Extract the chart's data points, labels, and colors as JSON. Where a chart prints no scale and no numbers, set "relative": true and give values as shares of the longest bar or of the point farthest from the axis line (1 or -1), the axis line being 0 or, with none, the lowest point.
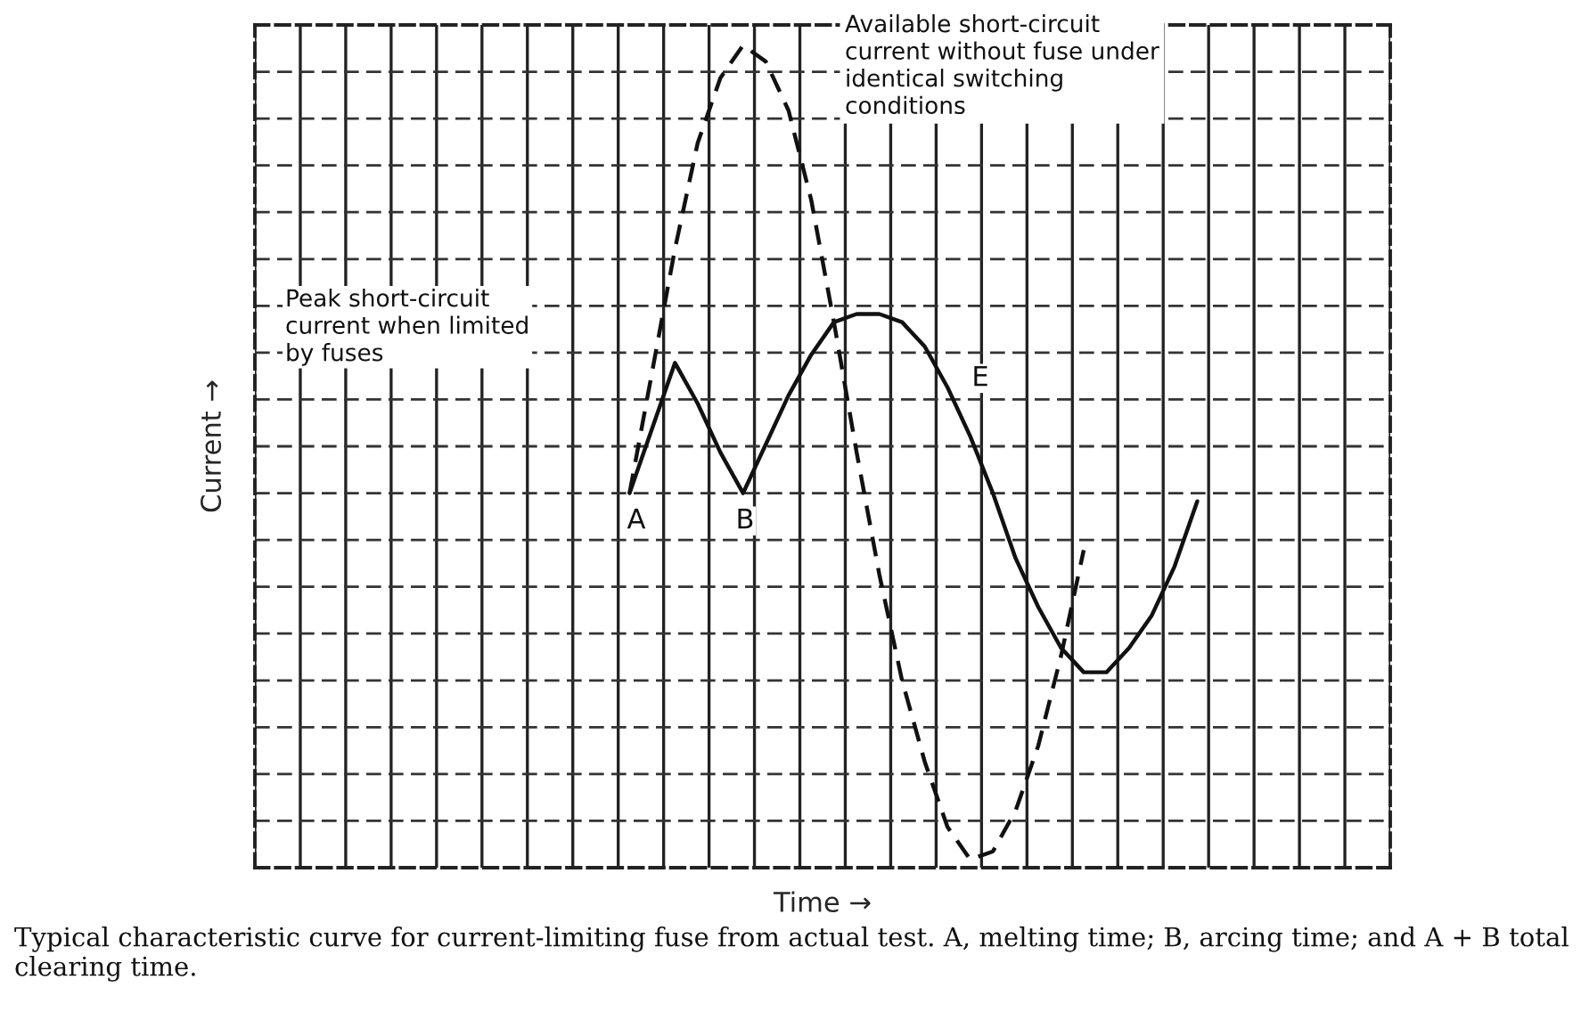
{
  "chart_data": {
    "type": "line",
    "relative": true,
    "xlabel": "Time →",
    "ylabel": "Current →",
    "grid": true,
    "categories": [
      null,
      null,
      null,
      null,
      null,
      null,
      null,
      null,
      null,
      null,
      null,
      null,
      null,
      null,
      null,
      null,
      null,
      null,
      null,
      null,
      null,
      null,
      null,
      null,
      null,
      null,
      null,
      null,
      null,
      null,
      null,
      null,
      null,
      null,
      null,
      null,
      null,
      null,
      null,
      null,
      null,
      null,
      null,
      null,
      null,
      null,
      null,
      null,
      null,
      null
    ],
    "series": [
      {
        "color": "#111111",
        "line_style": "dashed",
        "values": [
          null,
          null,
          null,
          null,
          null,
          null,
          null,
          null,
          null,
          null,
          null,
          null,
          null,
          null,
          null,
          null,
          0.45,
          0.6,
          0.75,
          0.88,
          0.96,
          1.0,
          0.98,
          0.92,
          0.81,
          0.66,
          0.5,
          0.35,
          0.22,
          0.12,
          0.04,
          0.0,
          0.01,
          0.06,
          0.14,
          0.25,
          0.38,
          null,
          null,
          null,
          null,
          null,
          null,
          null,
          null,
          null,
          null,
          null,
          null,
          null
        ]
      },
      {
        "color": "#111111",
        "line_style": "solid",
        "values": [
          null,
          null,
          null,
          null,
          null,
          null,
          null,
          null,
          null,
          null,
          null,
          null,
          null,
          null,
          null,
          null,
          0.45,
          0.53,
          0.61,
          0.56,
          0.5,
          0.45,
          0.51,
          0.57,
          0.62,
          0.66,
          0.67,
          0.67,
          0.66,
          0.63,
          0.58,
          0.52,
          0.45,
          0.37,
          0.31,
          0.26,
          0.23,
          0.23,
          0.26,
          0.3,
          0.36,
          0.44,
          null,
          null,
          null,
          null,
          null,
          null,
          null,
          null
        ]
      }
    ],
    "annotations": [
      "Available short-circuit current without fuse under identical switching conditions",
      "Peak short-circuit current when limited by fuses",
      "A",
      "B",
      "E",
      "Typical characteristic curve for current-limiting fuse from actual test. A, melting time; B, arcing time; and A + B total clearing time."
    ]
  }
}
